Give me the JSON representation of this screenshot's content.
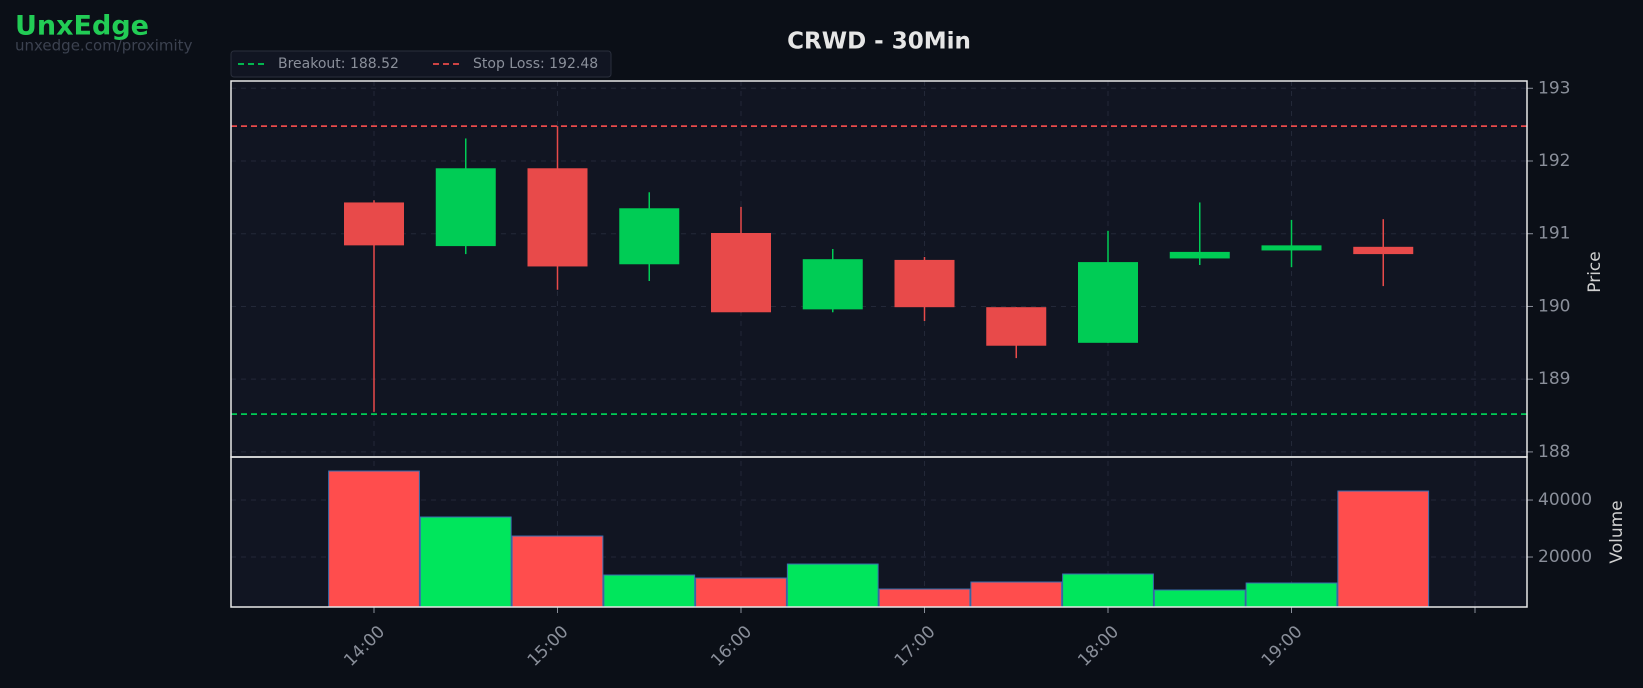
{
  "brand": {
    "name": "UnxEdge",
    "url": "unxedge.com/proximity"
  },
  "chart_data": {
    "type": "candlestick",
    "title": "CRWD - 30Min",
    "categories": [
      "14:00",
      null,
      "15:00",
      null,
      "16:00",
      null,
      "17:00",
      null,
      "18:00",
      null,
      "19:00",
      null
    ],
    "open": [
      191.43,
      190.83,
      191.9,
      190.58,
      191.01,
      189.96,
      190.64,
      189.99,
      189.5,
      190.66,
      190.77,
      190.82
    ],
    "high": [
      191.46,
      192.31,
      192.48,
      191.57,
      191.37,
      190.79,
      190.68,
      189.99,
      191.04,
      191.43,
      191.19,
      191.2
    ],
    "low": [
      188.55,
      190.72,
      190.23,
      190.35,
      189.92,
      189.92,
      189.8,
      189.29,
      189.5,
      190.57,
      190.54,
      190.28
    ],
    "close": [
      190.84,
      191.9,
      190.55,
      191.35,
      189.92,
      190.65,
      189.99,
      189.46,
      190.61,
      190.75,
      190.84,
      190.72
    ],
    "up_color": "#00cc55",
    "down_color": "#e84a4a",
    "ylabel": "Price",
    "ylim": [
      187.93,
      193.1
    ],
    "yticks": [
      188,
      189,
      190,
      191,
      192,
      193
    ],
    "grid": true,
    "levels": [
      {
        "label": "Breakout: 188.52",
        "value": 188.52,
        "color": "#00cc55"
      },
      {
        "label": "Stop Loss: 192.48",
        "value": 192.48,
        "color": "#e84a4a"
      }
    ],
    "volume": {
      "ylabel": "Volume",
      "values": [
        50180,
        34040,
        27370,
        13680,
        12630,
        17540,
        8770,
        11230,
        14040,
        8420,
        10880,
        43160
      ],
      "up_color": "#00e65c",
      "down_color": "#ff4d4d",
      "ylim": [
        2460,
        55100
      ],
      "yticks": [
        20000,
        40000
      ]
    }
  }
}
